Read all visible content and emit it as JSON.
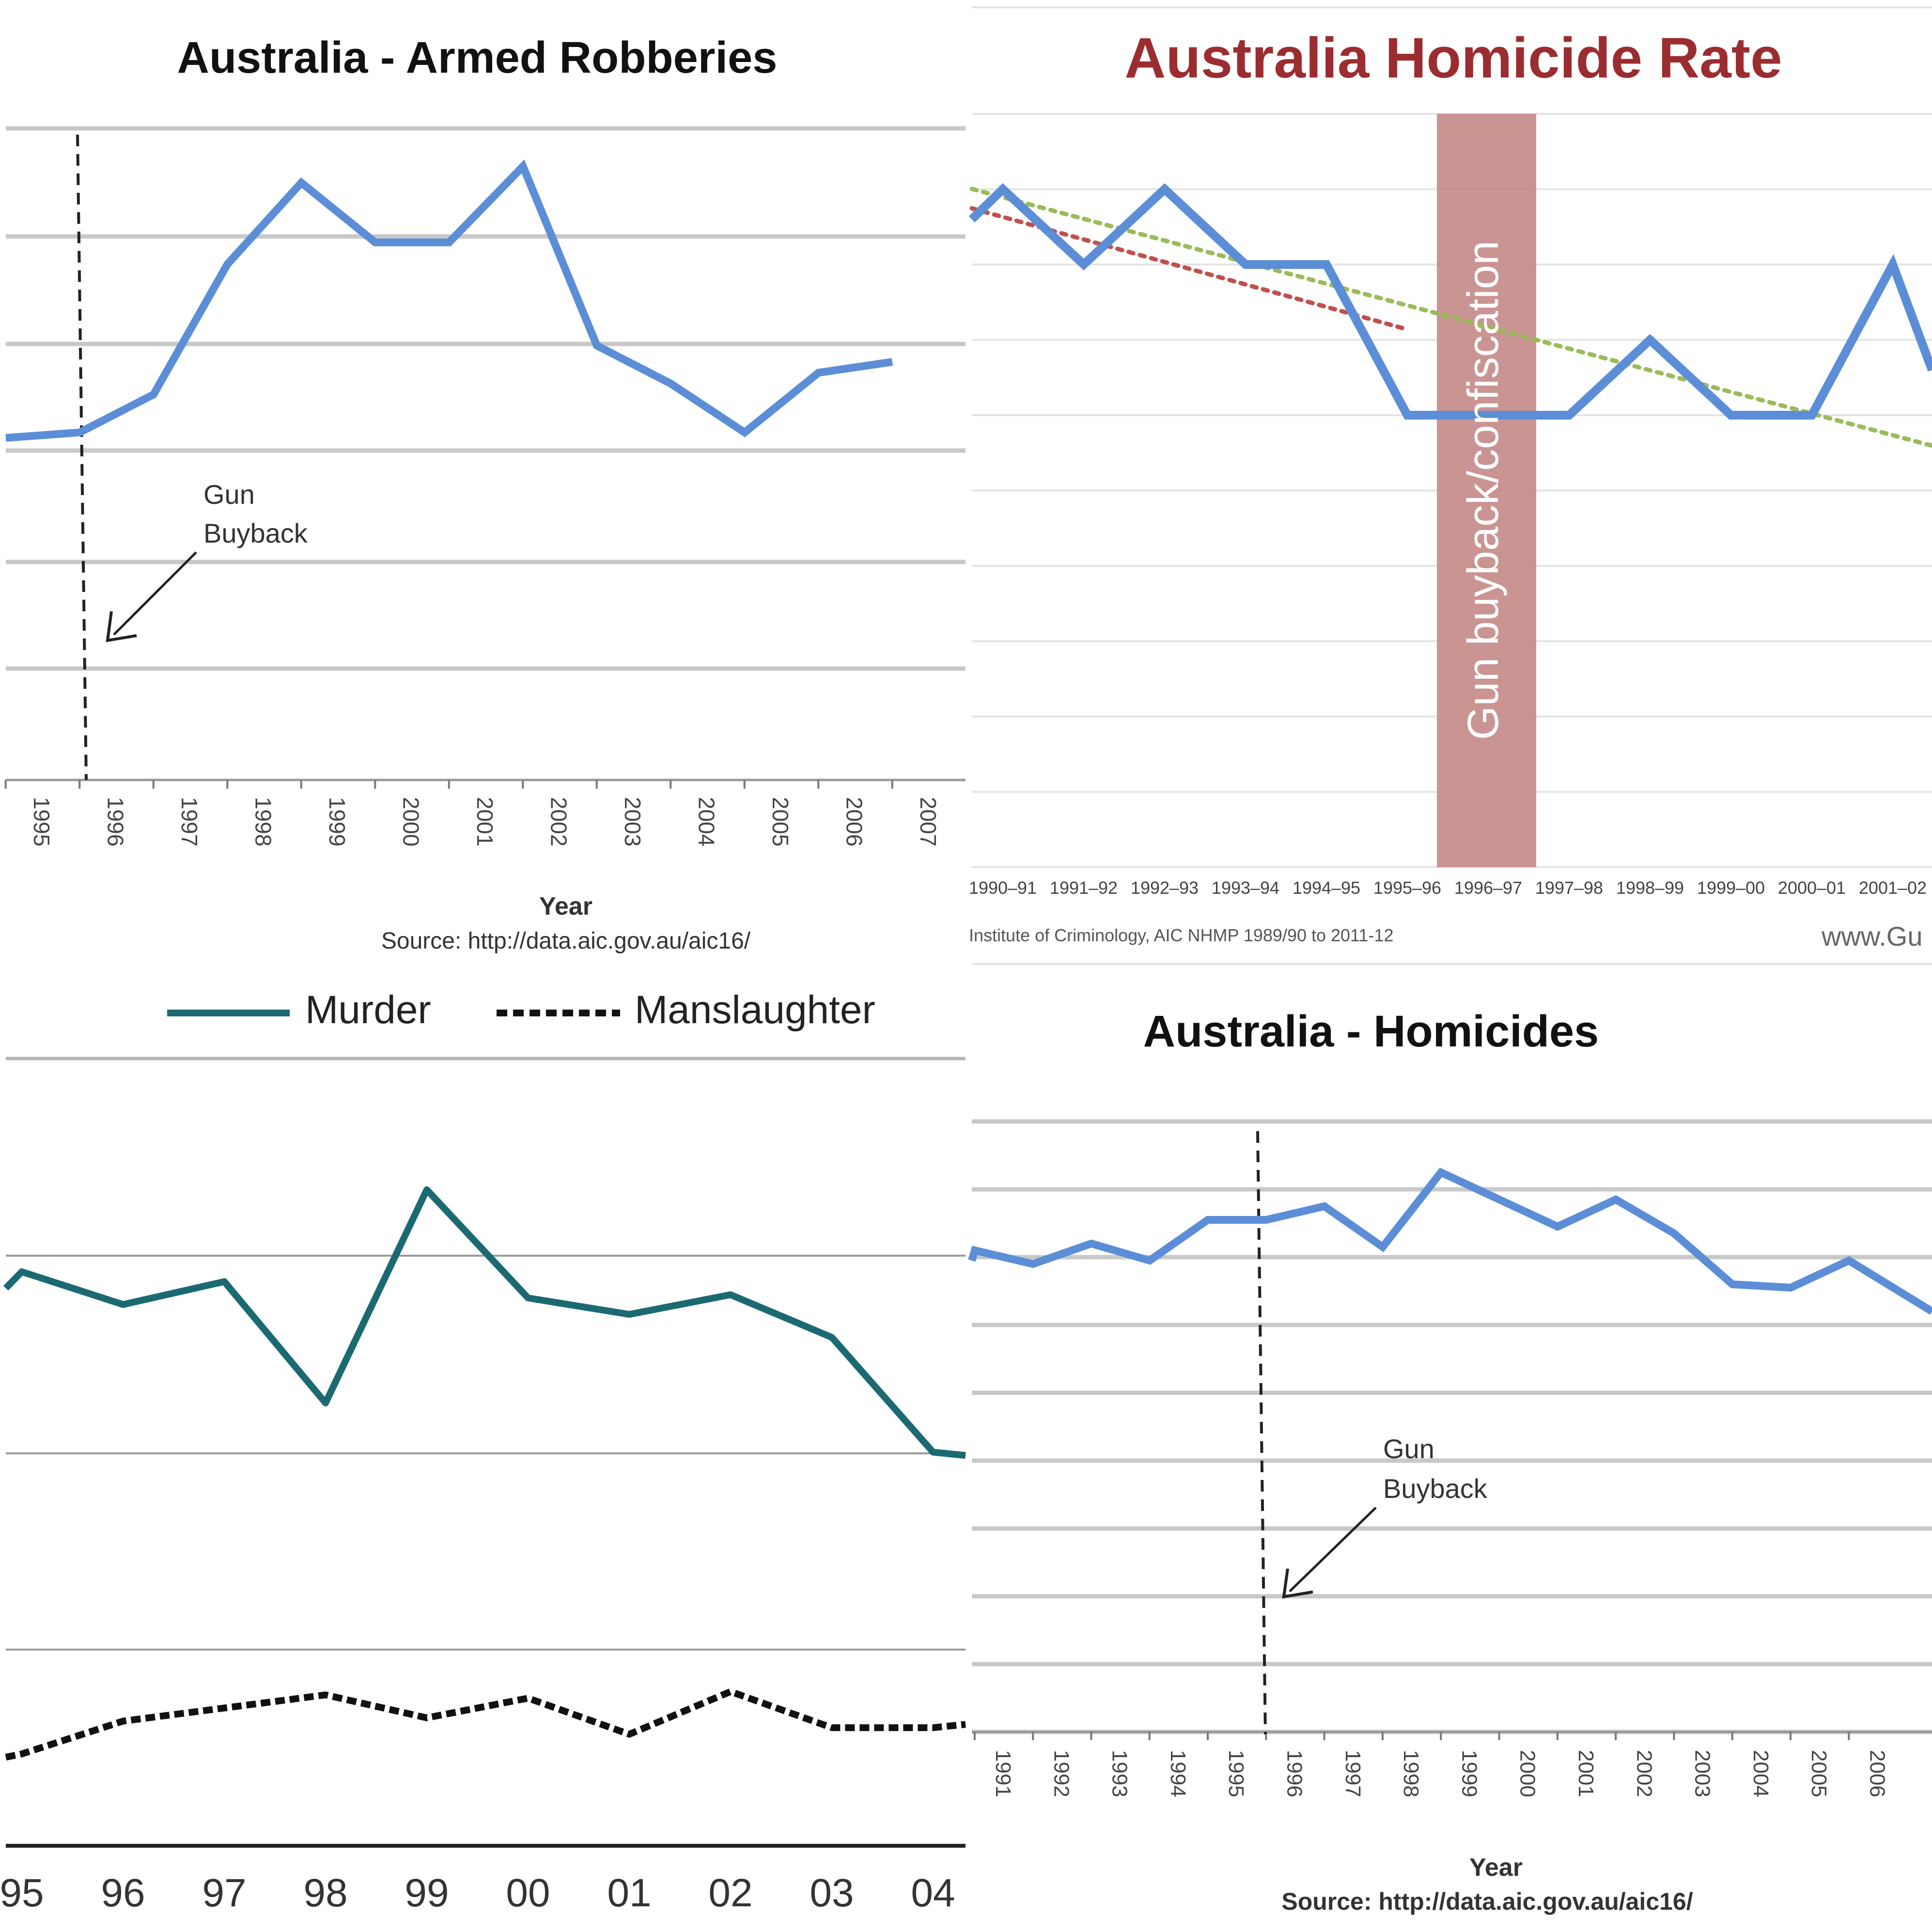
{
  "charts": {
    "robberies": {
      "title": "Australia - Armed Robberies",
      "xlabel": "Year",
      "source": "Source: http://data.aic.gov.au/aic16/",
      "annotation_line1": "Gun",
      "annotation_line2": "Buyback"
    },
    "homicide_rate": {
      "title": "Australia Homicide Rate",
      "band_label": "Gun buyback/confiscation",
      "source": "Institute of Criminology, AIC NHMP 1989/90 to 2011-12",
      "website": "www.Gu"
    },
    "murder": {
      "legend_murder": "Murder",
      "legend_manslaughter": "Manslaughter"
    },
    "homicides": {
      "title": "Australia - Homicides",
      "xlabel": "Year",
      "source": "Source: http://data.aic.gov.au/aic16/",
      "annotation_line1": "Gun",
      "annotation_line2": "Buyback"
    }
  },
  "colors": {
    "blue": "#5b8ed6",
    "teal": "#1b6a72",
    "dark_red_title": "#9b2d30",
    "band": "#c48b89",
    "trend_green": "#9bbb59",
    "trend_red": "#c0504d"
  },
  "chart_data": [
    {
      "type": "line",
      "title": "Australia - Armed Robberies",
      "xlabel": "Year",
      "categories": [
        "1995",
        "1996",
        "1997",
        "1998",
        "1999",
        "2000",
        "2001",
        "2002",
        "2003",
        "2004",
        "2005",
        "2006",
        "2007"
      ],
      "series": [
        {
          "values": [
            3.15,
            3.2,
            3.55,
            4.75,
            5.5,
            4.95,
            4.95,
            5.65,
            4.0,
            3.65,
            3.2,
            3.75,
            3.85
          ]
        }
      ],
      "ylim": [
        0,
        6
      ],
      "grid": true
    },
    {
      "type": "line",
      "title": "Australia Homicide Rate",
      "categories": [
        "1990–91",
        "1991–92",
        "1992–93",
        "1993–94",
        "1994–95",
        "1995–96",
        "1996–97",
        "1997–98",
        "1998–99",
        "1999–00",
        "2000–01",
        "2001–02"
      ],
      "series": [
        {
          "values": [
            9.0,
            8.0,
            9.0,
            8.0,
            8.0,
            6.0,
            6.0,
            6.0,
            7.0,
            6.0,
            6.0,
            8.0
          ]
        }
      ],
      "ylim": [
        0,
        10
      ],
      "grid": true
    },
    {
      "type": "line",
      "categories": [
        "95",
        "96",
        "97",
        "98",
        "99",
        "00",
        "01",
        "02",
        "03",
        "04"
      ],
      "series": [
        {
          "name": "Murder",
          "values": [
            1.75,
            1.65,
            1.72,
            1.35,
            2.0,
            1.67,
            1.62,
            1.68,
            1.55,
            1.2
          ]
        },
        {
          "name": "Manslaughter",
          "values": [
            0.28,
            0.38,
            0.42,
            0.46,
            0.39,
            0.45,
            0.34,
            0.47,
            0.36,
            0.36
          ]
        }
      ],
      "ylim": [
        0,
        2.4
      ],
      "grid": true
    },
    {
      "type": "line",
      "title": "Australia - Homicides",
      "xlabel": "Year",
      "categories": [
        "1991",
        "1992",
        "1993",
        "1994",
        "1995",
        "1996",
        "1997",
        "1998",
        "1999",
        "2000",
        "2001",
        "2002",
        "2003",
        "2004",
        "2005",
        "2006"
      ],
      "series": [
        {
          "values": [
            7.1,
            6.9,
            7.2,
            6.95,
            7.55,
            7.55,
            7.75,
            7.15,
            8.25,
            7.85,
            7.45,
            7.85,
            7.35,
            6.6,
            6.55,
            6.95
          ]
        }
      ],
      "ylim": [
        0,
        9
      ],
      "grid": true
    }
  ]
}
